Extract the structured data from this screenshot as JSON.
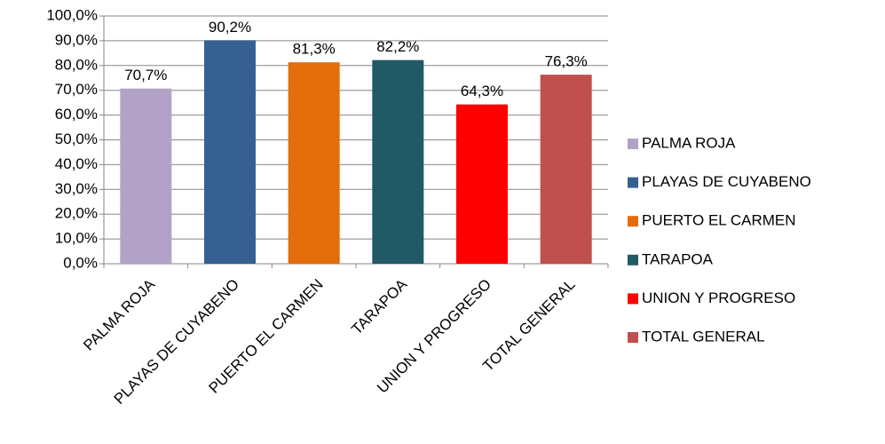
{
  "chart_data": {
    "type": "bar",
    "categories": [
      "PALMA ROJA",
      "PLAYAS DE CUYABENO",
      "PUERTO EL CARMEN",
      "TARAPOA",
      "UNION Y PROGRESO",
      "TOTAL GENERAL"
    ],
    "values": [
      70.7,
      90.2,
      81.3,
      82.2,
      64.3,
      76.3
    ],
    "value_labels": [
      "70,7%",
      "90,2%",
      "81,3%",
      "82,2%",
      "64,3%",
      "76,3%"
    ],
    "colors": [
      "#b3a2c7",
      "#376092",
      "#e46c0a",
      "#215967",
      "#ff0000",
      "#c0504d"
    ],
    "ylim": [
      0,
      100
    ],
    "yticks": [
      {
        "value": 0,
        "label": "0,0%"
      },
      {
        "value": 10,
        "label": "10,0%"
      },
      {
        "value": 20,
        "label": "20,0%"
      },
      {
        "value": 30,
        "label": "30,0%"
      },
      {
        "value": 40,
        "label": "40,0%"
      },
      {
        "value": 50,
        "label": "50,0%"
      },
      {
        "value": 60,
        "label": "60,0%"
      },
      {
        "value": 70,
        "label": "70,0%"
      },
      {
        "value": 80,
        "label": "80,0%"
      },
      {
        "value": 90,
        "label": "90,0%"
      },
      {
        "value": 100,
        "label": "100,0%"
      }
    ],
    "grid": true,
    "legend": "right"
  }
}
